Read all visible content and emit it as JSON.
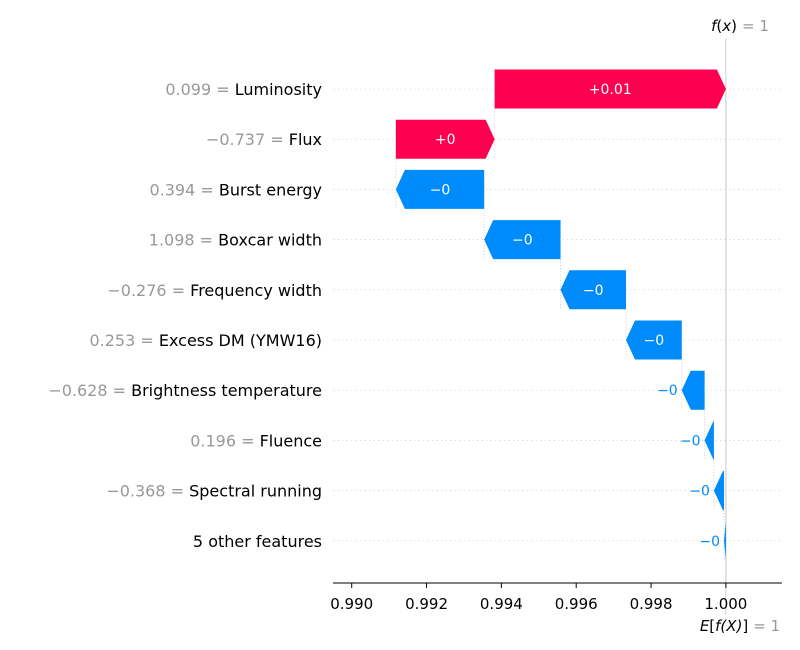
{
  "chart_data": {
    "type": "waterfall",
    "xlim": [
      0.9895,
      1.0015
    ],
    "x_ticks": [
      0.99,
      0.992,
      0.994,
      0.996,
      0.998,
      1.0
    ],
    "x_tick_labels": [
      "0.990",
      "0.992",
      "0.994",
      "0.996",
      "0.998",
      "1.000"
    ],
    "fx": {
      "label_prefix": "f",
      "label_arg": "x",
      "eq": "= 1",
      "value": 1.0
    },
    "efx": {
      "label_prefix": "E",
      "label_arg": "f(X)",
      "eq": "= 1",
      "value": 1.0
    },
    "colors": {
      "positive": "#ff0051",
      "negative": "#008bfb",
      "value_text": "#999999",
      "grid": "#cccccc"
    },
    "features": [
      {
        "value": "0.099",
        "name": "Luminosity",
        "start": 0.99382,
        "end": 1.0,
        "label": "+0.01",
        "sign": "positive"
      },
      {
        "value": "−0.737",
        "name": "Flux",
        "start": 0.99118,
        "end": 0.99382,
        "label": "+0",
        "sign": "positive"
      },
      {
        "value": "0.394",
        "name": "Burst energy",
        "start": 0.99354,
        "end": 0.99118,
        "label": "−0",
        "sign": "negative"
      },
      {
        "value": "1.098",
        "name": "Boxcar width",
        "start": 0.99558,
        "end": 0.99354,
        "label": "−0",
        "sign": "negative"
      },
      {
        "value": "−0.276",
        "name": "Frequency width",
        "start": 0.99733,
        "end": 0.99558,
        "label": "−0",
        "sign": "negative"
      },
      {
        "value": "0.253",
        "name": "Excess DM (YMW16)",
        "start": 0.99882,
        "end": 0.99733,
        "label": "−0",
        "sign": "negative"
      },
      {
        "value": "−0.628",
        "name": "Brightness temperature",
        "start": 0.99943,
        "end": 0.99882,
        "label": "−0",
        "sign": "negative"
      },
      {
        "value": "0.196",
        "name": "Fluence",
        "start": 0.99968,
        "end": 0.99943,
        "label": "−0",
        "sign": "negative"
      },
      {
        "value": "−0.368",
        "name": "Spectral running",
        "start": 0.99995,
        "end": 0.99968,
        "label": "−0",
        "sign": "negative"
      },
      {
        "value": "",
        "name": "5 other features",
        "start": 1.0,
        "end": 0.99995,
        "label": "−0",
        "sign": "negative"
      }
    ]
  }
}
